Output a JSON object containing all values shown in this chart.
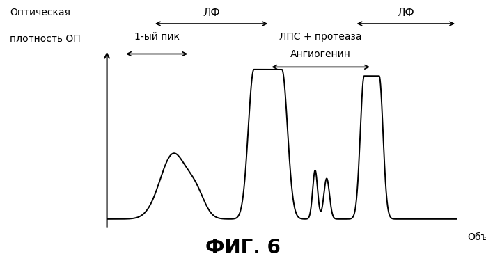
{
  "title": "ФИГ. 6",
  "ylabel_line1": "Оптическая",
  "ylabel_line2": "плотность ОП",
  "xlabel": "Объем",
  "background_color": "#ffffff",
  "line_color": "#000000",
  "title_fontsize": 20,
  "label_fontsize": 10,
  "annotation_fontsize": 10,
  "fig_width": 6.98,
  "fig_height": 3.78
}
